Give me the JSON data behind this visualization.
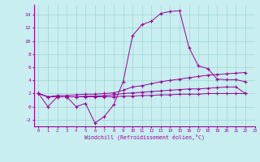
{
  "xlabel": "Windchill (Refroidissement éolien,°C)",
  "background_color": "#c8eef0",
  "line_color": "#990099",
  "xlim": [
    -0.5,
    23
  ],
  "ylim": [
    -3,
    15.5
  ],
  "xticks": [
    0,
    1,
    2,
    3,
    4,
    5,
    6,
    7,
    8,
    9,
    10,
    11,
    12,
    13,
    14,
    15,
    16,
    17,
    18,
    19,
    20,
    21,
    22,
    23
  ],
  "yticks": [
    -2,
    0,
    2,
    4,
    6,
    8,
    10,
    12,
    14
  ],
  "series": [
    [
      2.0,
      0.0,
      1.5,
      1.5,
      0.0,
      0.5,
      -2.5,
      -1.5,
      0.3,
      3.8,
      10.8,
      12.5,
      13.0,
      14.2,
      14.5,
      14.6,
      9.0,
      6.2,
      5.8,
      4.2,
      4.1,
      4.1,
      3.8
    ],
    [
      2.0,
      1.5,
      1.7,
      1.7,
      1.8,
      1.9,
      1.9,
      2.0,
      2.1,
      2.5,
      3.0,
      3.2,
      3.5,
      3.8,
      4.0,
      4.2,
      4.4,
      4.6,
      4.8,
      4.9,
      5.0,
      5.1,
      5.2
    ],
    [
      2.0,
      1.5,
      1.5,
      1.5,
      1.5,
      1.6,
      1.6,
      1.7,
      1.8,
      2.0,
      2.1,
      2.2,
      2.3,
      2.4,
      2.5,
      2.6,
      2.7,
      2.7,
      2.8,
      2.9,
      3.0,
      3.0,
      2.0
    ],
    [
      2.0,
      1.5,
      1.5,
      1.5,
      1.5,
      1.5,
      1.5,
      1.5,
      1.5,
      1.6,
      1.6,
      1.7,
      1.7,
      1.8,
      1.8,
      1.9,
      1.9,
      1.9,
      2.0,
      2.0,
      2.0,
      2.0,
      2.0
    ]
  ]
}
